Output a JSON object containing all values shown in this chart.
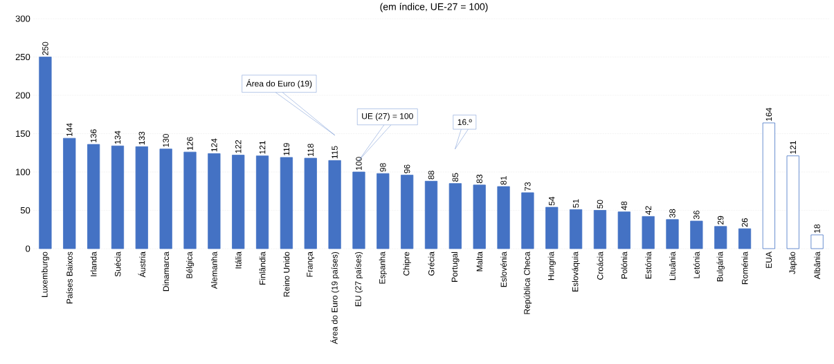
{
  "chart_data": {
    "type": "bar",
    "subtitle": "(em índice, UE-27 = 100)",
    "categories": [
      "Luxemburgo",
      "Países Baixos",
      "Irlanda",
      "Suécia",
      "Áustria",
      "Dinamarca",
      "Bélgica",
      "Alemanha",
      "Itália",
      "Finlândia",
      "Reino Unido",
      "França",
      "Área do Euro (19 países)",
      "EU (27 países)",
      "Espanha",
      "Chipre",
      "Grécia",
      "Portugal",
      "Malta",
      "Eslovénia",
      "República Checa",
      "Hungria",
      "Eslováquia",
      "Croácia",
      "Polónia",
      "Estónia",
      "Lituânia",
      "Letónia",
      "Bulgária",
      "Roménia",
      "EUA",
      "Japão",
      "Albânia"
    ],
    "values": [
      250,
      144,
      136,
      134,
      133,
      130,
      126,
      124,
      122,
      121,
      119,
      118,
      115,
      100,
      98,
      96,
      88,
      85,
      83,
      81,
      73,
      54,
      51,
      50,
      48,
      42,
      38,
      36,
      29,
      26,
      164,
      121,
      18
    ],
    "color": "#4472c4",
    "colors": [
      "#4472c4",
      "#4472c4",
      "#4472c4",
      "#4472c4",
      "#4472c4",
      "#4472c4",
      "#4472c4",
      "#4472c4",
      "#4472c4",
      "#4472c4",
      "#4472c4",
      "#4472c4",
      "#4472c4",
      "#4472c4",
      "#4472c4",
      "#4472c4",
      "#4472c4",
      "#4472c4",
      "#4472c4",
      "#4472c4",
      "#4472c4",
      "#4472c4",
      "#4472c4",
      "#4472c4",
      "#4472c4",
      "#4472c4",
      "#4472c4",
      "#4472c4",
      "#4472c4",
      "#4472c4",
      "#ffffff",
      "#ffffff",
      "#ffffff"
    ],
    "ylim": [
      0,
      300
    ],
    "yticks": [
      0,
      50,
      100,
      150,
      200,
      250,
      300
    ],
    "grid": "y",
    "data_labels": true,
    "annotations": [
      "Área do Euro (19)",
      "UE (27) = 100",
      "16.º"
    ]
  }
}
